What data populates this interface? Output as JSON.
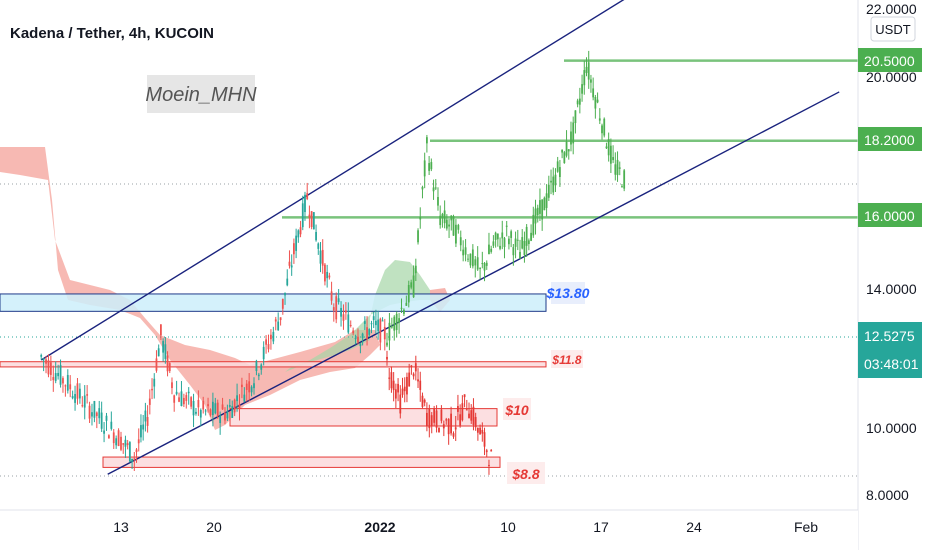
{
  "header": {
    "title": "Kadena / Tether, 4h, KUCOIN",
    "watermark": "Moein_MHN"
  },
  "price_axis": {
    "currency": "USDT",
    "ticks": [
      "22.0000",
      "20.0000",
      "14.0000",
      "10.0000",
      "8.0000"
    ]
  },
  "time_axis": {
    "ticks": [
      "13",
      "20",
      "2022",
      "10",
      "17",
      "24",
      "Feb"
    ]
  },
  "price_tags": [
    {
      "label": "20.5000",
      "color": "#4caf50"
    },
    {
      "label": "18.2000",
      "color": "#4caf50"
    },
    {
      "label": "16.0000",
      "color": "#4caf50"
    },
    {
      "label": "12.5275",
      "sub": "03:48:01",
      "color": "#26a69a"
    }
  ],
  "annotations": [
    {
      "label": "$13.80",
      "color": "#2962ff"
    },
    {
      "label": "$11.8",
      "color": "#e53935"
    },
    {
      "label": "$10",
      "color": "#e53935"
    },
    {
      "label": "$8.8",
      "color": "#e53935"
    }
  ],
  "chart_data": {
    "type": "candlestick",
    "title": "Kadena / Tether, 4h, KUCOIN",
    "y_unit": "USDT",
    "x_range": [
      "2021-12-07",
      "2022-02-05"
    ],
    "y_range": [
      8.0,
      22.0
    ],
    "current_price": 12.5275,
    "countdown": "03:48:01",
    "horizontal_levels": [
      {
        "price": 20.5,
        "color": "#4caf50"
      },
      {
        "price": 18.2,
        "color": "#4caf50"
      },
      {
        "price": 16.0,
        "color": "#4caf50"
      }
    ],
    "zones": [
      {
        "label": "$13.80",
        "low": 13.3,
        "high": 13.8,
        "color": "#2962ff"
      },
      {
        "label": "$11.8",
        "low": 11.7,
        "high": 11.85,
        "color": "#e53935"
      },
      {
        "label": "$10",
        "low": 10.0,
        "high": 10.5,
        "color": "#e53935"
      },
      {
        "label": "$8.8",
        "low": 8.8,
        "high": 9.1,
        "color": "#e53935"
      }
    ],
    "channel": [
      {
        "from": {
          "date": "2021-12-07",
          "price": 11.9
        },
        "to": {
          "date": "2022-01-20",
          "price": 22.3
        }
      },
      {
        "from": {
          "date": "2021-12-12",
          "price": 8.6
        },
        "to": {
          "date": "2022-02-05",
          "price": 19.6
        }
      }
    ],
    "price_path": [
      {
        "date": "2021-12-07",
        "price": 12.0
      },
      {
        "date": "2021-12-09",
        "price": 11.2
      },
      {
        "date": "2021-12-11",
        "price": 10.4
      },
      {
        "date": "2021-12-13",
        "price": 9.6
      },
      {
        "date": "2021-12-14",
        "price": 9.1
      },
      {
        "date": "2021-12-15",
        "price": 10.3
      },
      {
        "date": "2021-12-16",
        "price": 12.6
      },
      {
        "date": "2021-12-17",
        "price": 11.0
      },
      {
        "date": "2021-12-19",
        "price": 10.4
      },
      {
        "date": "2021-12-21",
        "price": 10.4
      },
      {
        "date": "2021-12-23",
        "price": 11.4
      },
      {
        "date": "2021-12-25",
        "price": 13.2
      },
      {
        "date": "2021-12-26",
        "price": 15.0
      },
      {
        "date": "2021-12-27",
        "price": 16.6
      },
      {
        "date": "2021-12-28",
        "price": 15.0
      },
      {
        "date": "2021-12-29",
        "price": 13.5
      },
      {
        "date": "2021-12-31",
        "price": 12.6
      },
      {
        "date": "2022-01-01",
        "price": 12.9
      },
      {
        "date": "2022-01-02",
        "price": 12.6
      },
      {
        "date": "2022-01-04",
        "price": 14.0
      },
      {
        "date": "2022-01-05",
        "price": 18.0
      },
      {
        "date": "2022-01-06",
        "price": 16.0
      },
      {
        "date": "2022-01-07",
        "price": 15.7
      },
      {
        "date": "2022-01-09",
        "price": 14.4
      },
      {
        "date": "2022-01-10",
        "price": 15.2
      },
      {
        "date": "2022-01-11",
        "price": 15.5
      },
      {
        "date": "2022-01-12",
        "price": 15.0
      },
      {
        "date": "2022-01-13",
        "price": 15.8
      },
      {
        "date": "2022-01-14",
        "price": 16.5
      },
      {
        "date": "2022-01-15",
        "price": 17.5
      },
      {
        "date": "2022-01-16",
        "price": 18.4
      },
      {
        "date": "2022-01-17",
        "price": 20.4
      },
      {
        "date": "2022-01-18",
        "price": 19.0
      },
      {
        "date": "2022-01-19",
        "price": 17.5
      },
      {
        "date": "2022-01-20",
        "price": 17.0
      }
    ],
    "projection": [
      {
        "date": "2022-01-02",
        "price": 11.8
      },
      {
        "date": "2022-01-03",
        "price": 10.7
      },
      {
        "date": "2022-01-04",
        "price": 11.7
      },
      {
        "date": "2022-01-05",
        "price": 10.3
      },
      {
        "date": "2022-01-07",
        "price": 10.0
      },
      {
        "date": "2022-01-08",
        "price": 10.7
      },
      {
        "date": "2022-01-09",
        "price": 9.8
      },
      {
        "date": "2022-01-10",
        "price": 8.9
      }
    ]
  }
}
